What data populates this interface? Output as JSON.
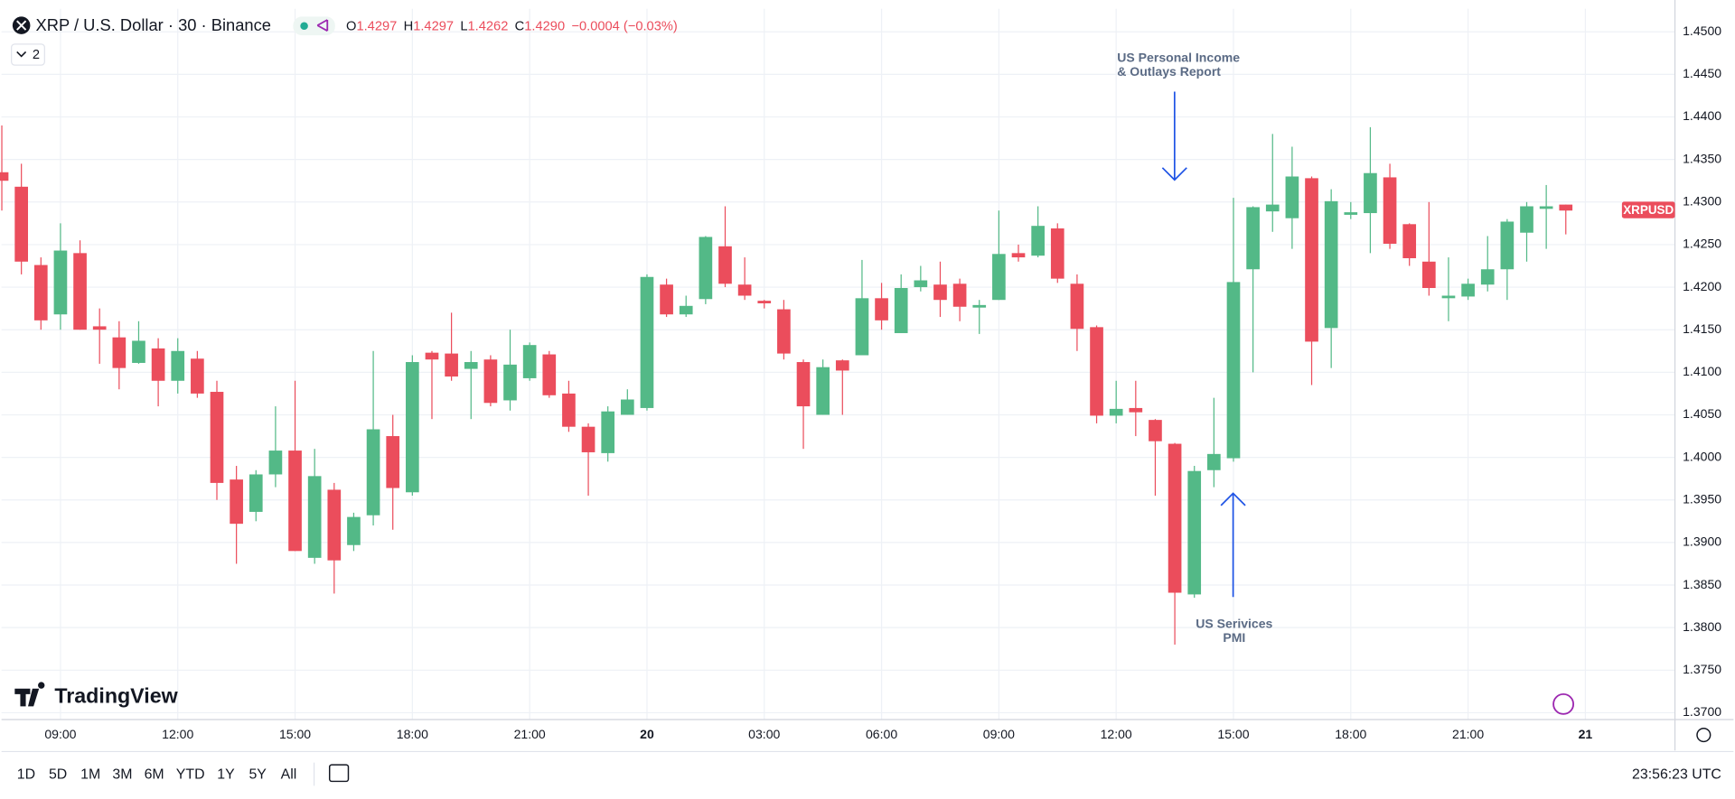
{
  "header": {
    "symbol_title": "XRP / U.S. Dollar · 30 · Binance",
    "ohlc": [
      {
        "label": "O",
        "value": "1.4297"
      },
      {
        "label": "H",
        "value": "1.4297"
      },
      {
        "label": "L",
        "value": "1.4262"
      },
      {
        "label": "C",
        "value": "1.4290"
      }
    ],
    "change": "−0.0004 (−0.03%)",
    "indicators_count": "2"
  },
  "branding": "TradingView",
  "toolbar": {
    "ranges": [
      "1D",
      "5D",
      "1M",
      "3M",
      "6M",
      "YTD",
      "1Y",
      "5Y",
      "All"
    ],
    "clock": "23:56:23 UTC"
  },
  "chart_data": {
    "type": "candlestick",
    "symbol": "XRPUSD",
    "up_color": "#53b987",
    "down_color": "#eb4d5c",
    "grid": true,
    "x": [
      7.5,
      8,
      8.5,
      9,
      9.5,
      10,
      10.5,
      11,
      11.5,
      12,
      12.5,
      13,
      13.5,
      14,
      14.5,
      15,
      15.5,
      16,
      16.5,
      17,
      17.5,
      18,
      18.5,
      19,
      19.5,
      20,
      20.5,
      21,
      21.5,
      22,
      22.5,
      23,
      23.5,
      24,
      24.5,
      25,
      25.5,
      26,
      26.5,
      27,
      27.5,
      28,
      28.5,
      29,
      29.5,
      30,
      30.5,
      31,
      31.5,
      32,
      32.5,
      33,
      33.5,
      34,
      34.5,
      35,
      35.5,
      36,
      36.5,
      37,
      37.5,
      38,
      38.5,
      39,
      39.5,
      40,
      40.5,
      41,
      41.5,
      42,
      42.5,
      43,
      43.5,
      44,
      44.5,
      45,
      45.5,
      46,
      46.5,
      47,
      47.5
    ],
    "open": [
      1.4335,
      1.4318,
      1.4226,
      1.4168,
      1.424,
      1.4154,
      1.4141,
      1.4111,
      1.4128,
      1.409,
      1.4116,
      1.4077,
      1.3974,
      1.3936,
      1.398,
      1.4008,
      1.3882,
      1.3962,
      1.3897,
      1.3932,
      1.4025,
      1.3959,
      1.4123,
      1.4122,
      1.4104,
      1.4115,
      1.4067,
      1.4093,
      1.4121,
      1.4075,
      1.4036,
      1.4005,
      1.405,
      1.4058,
      1.4203,
      1.4168,
      1.4186,
      1.4248,
      1.4203,
      1.4184,
      1.4174,
      1.4112,
      1.405,
      1.4114,
      1.412,
      1.4187,
      1.4146,
      1.42,
      1.4203,
      1.4204,
      1.4176,
      1.4185,
      1.424,
      1.4237,
      1.4269,
      1.4204,
      1.4153,
      1.4049,
      1.4058,
      1.4044,
      1.4016,
      1.3839,
      1.3985,
      1.3999,
      1.4221,
      1.4289,
      1.4281,
      1.4328,
      1.4152,
      1.4285,
      1.4287,
      1.4329,
      1.4274,
      1.423,
      1.4187,
      1.4189,
      1.4203,
      1.4221,
      1.4264,
      1.4292,
      1.4297
    ],
    "high": [
      1.439,
      1.4345,
      1.4235,
      1.4275,
      1.4255,
      1.4175,
      1.416,
      1.416,
      1.414,
      1.414,
      1.4125,
      1.409,
      1.399,
      1.3985,
      1.406,
      1.409,
      1.401,
      1.397,
      1.3935,
      1.4125,
      1.405,
      1.412,
      1.4125,
      1.417,
      1.4125,
      1.412,
      1.415,
      1.4135,
      1.4125,
      1.409,
      1.404,
      1.406,
      1.408,
      1.4215,
      1.421,
      1.419,
      1.426,
      1.4295,
      1.4235,
      1.4185,
      1.4185,
      1.4115,
      1.4115,
      1.4115,
      1.4232,
      1.4205,
      1.4215,
      1.4225,
      1.423,
      1.421,
      1.4185,
      1.429,
      1.425,
      1.4295,
      1.4275,
      1.4215,
      1.4155,
      1.409,
      1.409,
      1.4045,
      1.4017,
      1.399,
      1.407,
      1.4305,
      1.4295,
      1.438,
      1.4365,
      1.433,
      1.4315,
      1.43,
      1.4388,
      1.4345,
      1.4275,
      1.43,
      1.4235,
      1.421,
      1.426,
      1.428,
      1.43,
      1.432,
      1.4297
    ],
    "low": [
      1.429,
      1.4215,
      1.415,
      1.415,
      1.415,
      1.411,
      1.408,
      1.411,
      1.406,
      1.4075,
      1.407,
      1.395,
      1.3875,
      1.3925,
      1.3965,
      1.389,
      1.3875,
      1.384,
      1.389,
      1.392,
      1.3915,
      1.3955,
      1.4045,
      1.409,
      1.4045,
      1.406,
      1.4055,
      1.409,
      1.407,
      1.403,
      1.3955,
      1.3995,
      1.405,
      1.4055,
      1.4165,
      1.4165,
      1.418,
      1.42,
      1.4185,
      1.4175,
      1.4115,
      1.401,
      1.405,
      1.405,
      1.412,
      1.415,
      1.4146,
      1.4195,
      1.4165,
      1.416,
      1.4145,
      1.4185,
      1.423,
      1.4235,
      1.4205,
      1.4125,
      1.404,
      1.404,
      1.4025,
      1.3955,
      1.378,
      1.3835,
      1.3965,
      1.3995,
      1.41,
      1.4265,
      1.4245,
      1.4085,
      1.4105,
      1.428,
      1.424,
      1.4245,
      1.4225,
      1.419,
      1.416,
      1.4185,
      1.4195,
      1.4185,
      1.423,
      1.4245,
      1.4262
    ],
    "close": [
      1.4325,
      1.423,
      1.4161,
      1.4243,
      1.415,
      1.415,
      1.4105,
      1.4137,
      1.409,
      1.4125,
      1.4075,
      1.397,
      1.3922,
      1.398,
      1.4008,
      1.389,
      1.3978,
      1.3879,
      1.393,
      1.4033,
      1.3964,
      1.4112,
      1.4115,
      1.4095,
      1.4112,
      1.4064,
      1.4109,
      1.4132,
      1.4073,
      1.4036,
      1.4006,
      1.4054,
      1.4068,
      1.4212,
      1.4168,
      1.4178,
      1.4259,
      1.4204,
      1.419,
      1.4181,
      1.4122,
      1.406,
      1.4106,
      1.4102,
      1.4187,
      1.4161,
      1.4199,
      1.4208,
      1.4185,
      1.4177,
      1.4179,
      1.4239,
      1.4235,
      1.4272,
      1.421,
      1.4151,
      1.4049,
      1.4057,
      1.4053,
      1.4019,
      1.3841,
      1.3984,
      1.4004,
      1.4206,
      1.4294,
      1.4297,
      1.433,
      1.4136,
      1.4301,
      1.4288,
      1.4334,
      1.4251,
      1.4234,
      1.4199,
      1.419,
      1.4204,
      1.4221,
      1.4277,
      1.4295,
      1.4295,
      1.429
    ],
    "xlim": [
      7.5,
      50.3
    ],
    "xticks": [
      {
        "value": 9,
        "label": "09:00"
      },
      {
        "value": 12,
        "label": "12:00"
      },
      {
        "value": 15,
        "label": "15:00"
      },
      {
        "value": 18,
        "label": "18:00"
      },
      {
        "value": 21,
        "label": "21:00"
      },
      {
        "value": 24,
        "label": "20"
      },
      {
        "value": 27,
        "label": "03:00"
      },
      {
        "value": 30,
        "label": "06:00"
      },
      {
        "value": 33,
        "label": "09:00"
      },
      {
        "value": 36,
        "label": "12:00"
      },
      {
        "value": 39,
        "label": "15:00"
      },
      {
        "value": 42,
        "label": "18:00"
      },
      {
        "value": 45,
        "label": "21:00"
      },
      {
        "value": 48,
        "label": "21"
      }
    ],
    "ylim": [
      1.3692,
      1.4527
    ],
    "yticks": [
      {
        "value": 1.45,
        "label": "1.4500"
      },
      {
        "value": 1.445,
        "label": "1.4450"
      },
      {
        "value": 1.44,
        "label": "1.4400"
      },
      {
        "value": 1.435,
        "label": "1.4350"
      },
      {
        "value": 1.43,
        "label": "1.4300"
      },
      {
        "value": 1.425,
        "label": "1.4250"
      },
      {
        "value": 1.42,
        "label": "1.4200"
      },
      {
        "value": 1.415,
        "label": "1.4150"
      },
      {
        "value": 1.41,
        "label": "1.4100"
      },
      {
        "value": 1.405,
        "label": "1.4050"
      },
      {
        "value": 1.4,
        "label": "1.4000"
      },
      {
        "value": 1.395,
        "label": "1.3950"
      },
      {
        "value": 1.39,
        "label": "1.3900"
      },
      {
        "value": 1.385,
        "label": "1.3850"
      },
      {
        "value": 1.38,
        "label": "1.3800"
      },
      {
        "value": 1.375,
        "label": "1.3750"
      },
      {
        "value": 1.37,
        "label": "1.3700"
      }
    ],
    "annotations": [
      {
        "lines": [
          "US Personal Income",
          "& Outlays Report"
        ]
      },
      {
        "lines": [
          "US Serivices",
          "PMI"
        ]
      }
    ]
  }
}
